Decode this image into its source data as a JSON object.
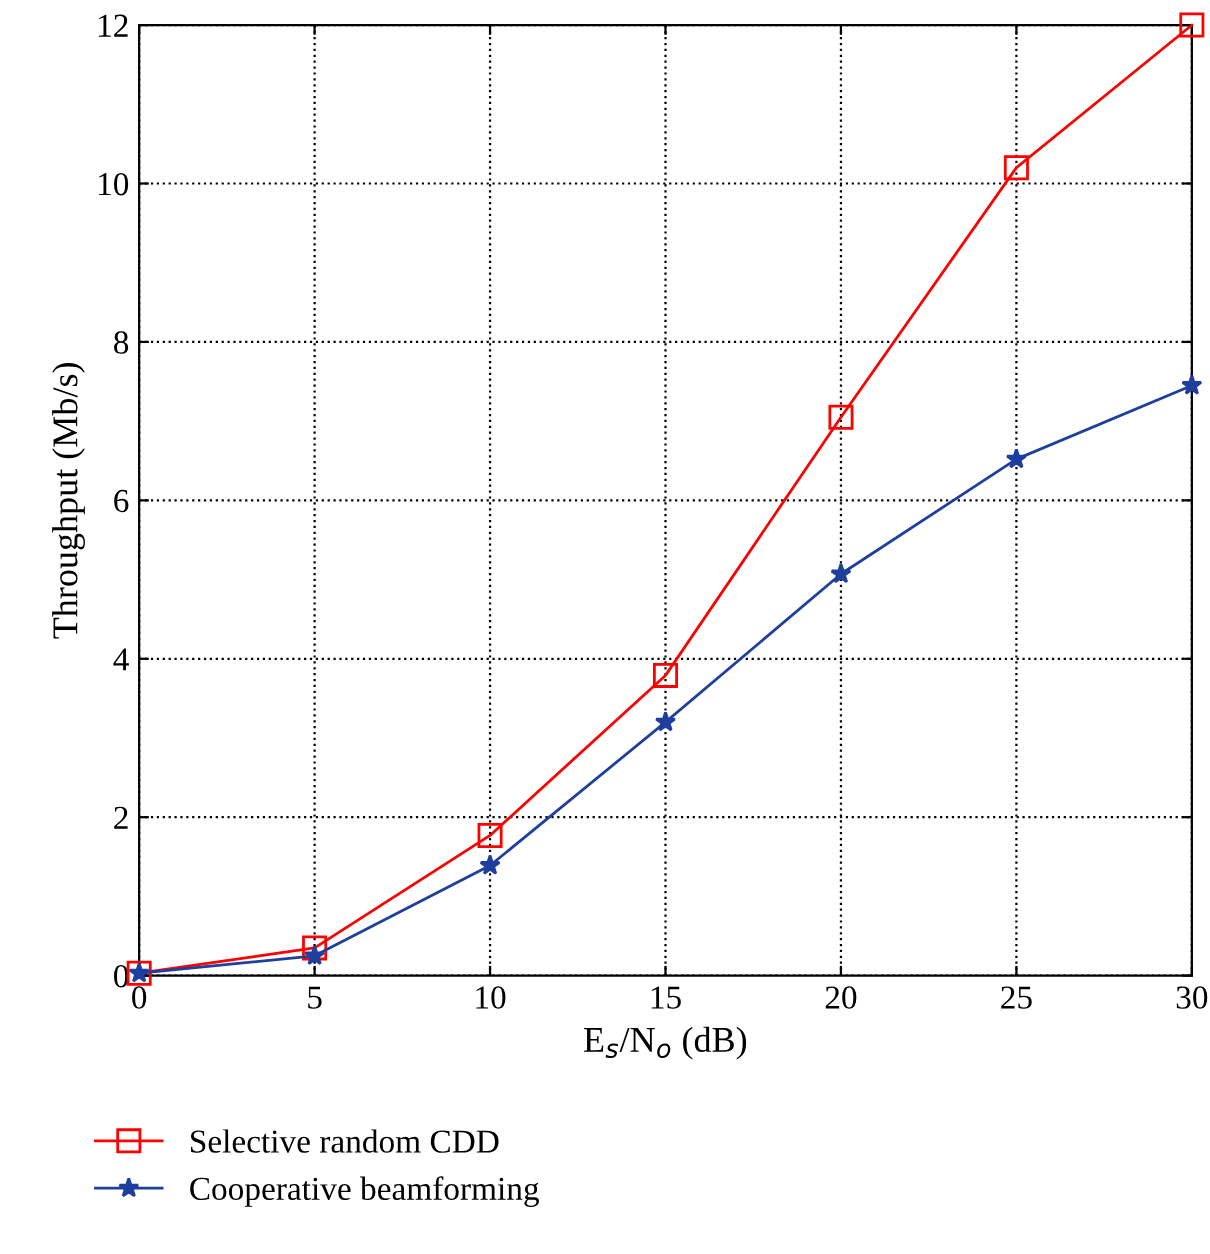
{
  "chart_data": {
    "type": "line",
    "xlabel": "E$_{s}$/N$_{o}$ (dB)",
    "ylabel": "Throughput (Mb/s)",
    "x": [
      0,
      5,
      10,
      15,
      20,
      25,
      30
    ],
    "series": [
      {
        "name": "Selective random CDD",
        "color": "#ff0000",
        "marker": "square",
        "values": [
          0.03,
          0.35,
          1.77,
          3.79,
          7.05,
          10.2,
          12.0
        ]
      },
      {
        "name": "Cooperative beamforming",
        "color": "#1f3f9f",
        "marker": "star",
        "values": [
          0.03,
          0.25,
          1.39,
          3.2,
          5.07,
          6.52,
          7.45
        ]
      }
    ],
    "xlim": [
      0,
      30
    ],
    "ylim": [
      0,
      12
    ],
    "xticks": [
      0,
      5,
      10,
      15,
      20,
      25,
      30
    ],
    "yticks": [
      0,
      2,
      4,
      6,
      8,
      10,
      12
    ],
    "grid": true,
    "legend": "bottom",
    "line_style": "solid"
  }
}
